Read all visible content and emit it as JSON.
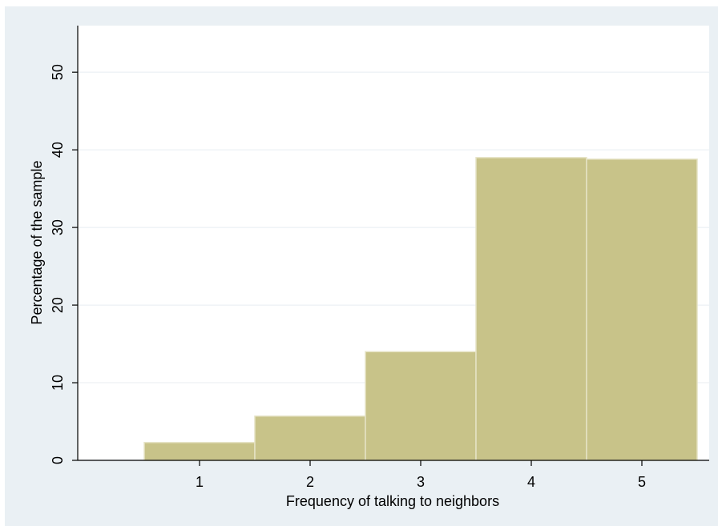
{
  "chart_data": {
    "type": "bar",
    "categories": [
      "1",
      "2",
      "3",
      "4",
      "5"
    ],
    "values": [
      2.3,
      5.7,
      14.0,
      39.0,
      38.8
    ],
    "xlabel": "Frequency of talking to neighbors",
    "ylabel": "Percentage of the sample",
    "ylim": [
      0,
      56
    ],
    "yticks": [
      0,
      10,
      20,
      30,
      40,
      50
    ],
    "grid": true,
    "colors": {
      "bar_fill": "#c8c389",
      "bar_edge": "#e6e3c6",
      "background": "#eaf0f4",
      "plot_area": "#ffffff",
      "grid": "#e8eef2",
      "axis": "#000000"
    }
  }
}
